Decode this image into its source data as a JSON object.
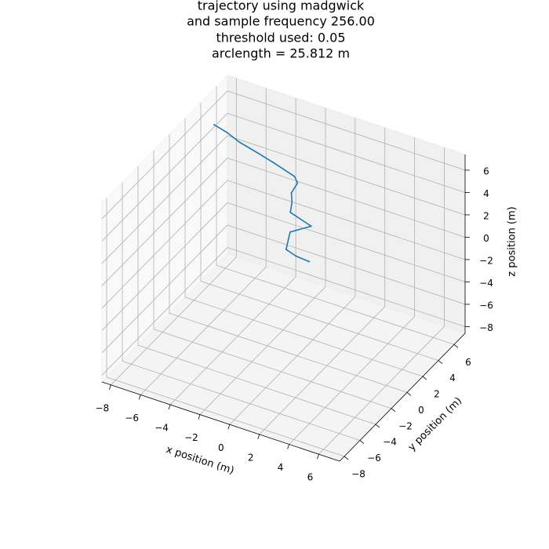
{
  "chart_data": {
    "type": "line3d",
    "title": [
      "trajectory using madgwick",
      "and sample frequency 256.00",
      "threshold used: 0.05",
      "arclength = 25.812 m"
    ],
    "xlabel": "x position (m)",
    "ylabel": "y position (m)",
    "zlabel": "z position (m)",
    "xlim": [
      -8.6,
      7.4
    ],
    "ylim": [
      -8.6,
      7.4
    ],
    "zlim": [
      -8.6,
      7.4
    ],
    "xticks": [
      {
        "value": -8,
        "label": "−8"
      },
      {
        "value": -6,
        "label": "−6"
      },
      {
        "value": -4,
        "label": "−4"
      },
      {
        "value": -2,
        "label": "−2"
      },
      0,
      2,
      4,
      6
    ],
    "yticks": [
      {
        "value": -8,
        "label": "−8"
      },
      {
        "value": -6,
        "label": "−6"
      },
      {
        "value": -4,
        "label": "−4"
      },
      {
        "value": -2,
        "label": "−2"
      },
      0,
      2,
      4,
      6
    ],
    "zticks": [
      {
        "value": -8,
        "label": "−8"
      },
      {
        "value": -6,
        "label": "−6"
      },
      {
        "value": -4,
        "label": "−4"
      },
      {
        "value": -2,
        "label": "−2"
      },
      0,
      2,
      4,
      6
    ],
    "grid": true,
    "series": [
      {
        "color": "#1f77b4",
        "x": [
          -7.6,
          -6.8,
          -6.0,
          -4.9,
          -3.9,
          -2.6,
          -2.35,
          -2.5,
          -2.3,
          -2.2,
          -0.9,
          -1.9,
          -1.8,
          -1.2,
          -0.4
        ],
        "y": [
          3.8,
          3.9,
          4.0,
          4.2,
          4.4,
          4.6,
          4.5,
          4.0,
          3.7,
          3.3,
          3.5,
          2.7,
          2.0,
          2.1,
          2.3
        ],
        "z": [
          6.0,
          5.6,
          5.0,
          4.4,
          3.8,
          3.0,
          2.6,
          2.0,
          1.5,
          0.9,
          0.1,
          -0.3,
          -1.3,
          -1.7,
          -2.0
        ]
      }
    ]
  }
}
